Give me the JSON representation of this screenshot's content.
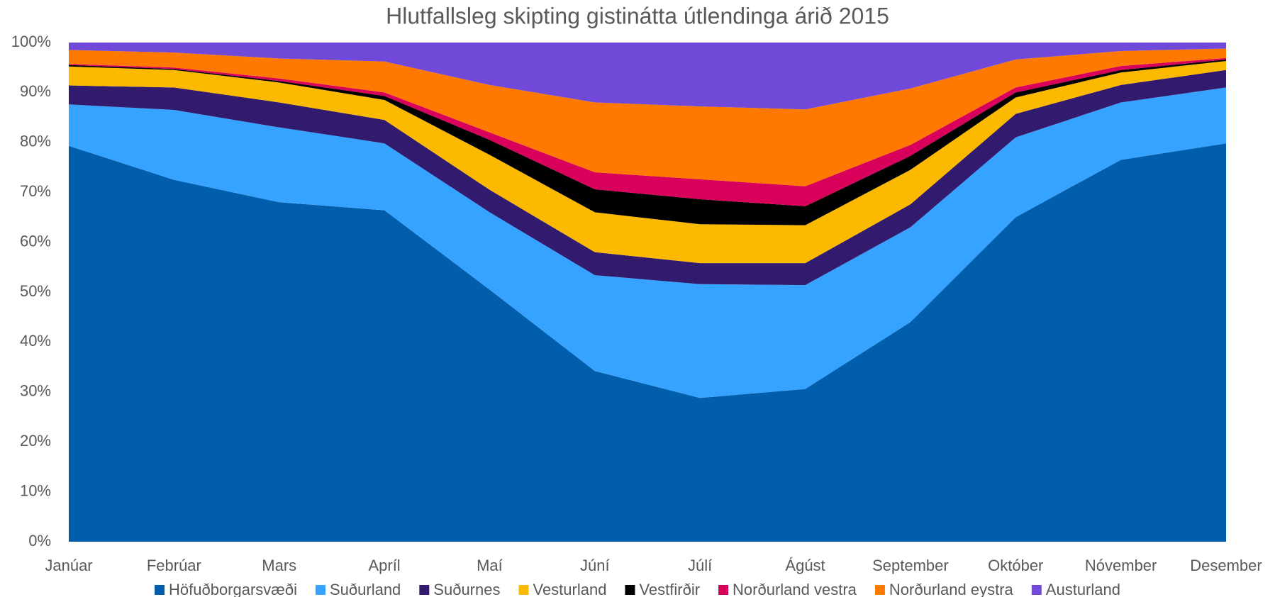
{
  "chart_data": {
    "type": "stacked_area_100",
    "title": "Hlutfallsleg skipting gistinátta útlendinga árið 2015",
    "categories": [
      "Janúar",
      "Febrúar",
      "Mars",
      "Apríl",
      "Maí",
      "Júní",
      "Júlí",
      "Ágúst",
      "September",
      "Október",
      "Nóvember",
      "Desember"
    ],
    "series": [
      {
        "name": "Höfuðborgarsvæði",
        "color": "#005ead",
        "values": [
          79.3,
          72.5,
          68.0,
          66.4,
          50.5,
          34.2,
          28.8,
          30.6,
          44.0,
          65.0,
          76.5,
          79.8
        ]
      },
      {
        "name": "Suðurland",
        "color": "#35a3ff",
        "values": [
          8.3,
          14.0,
          15.0,
          13.4,
          15.5,
          19.2,
          22.8,
          20.8,
          19.0,
          16.0,
          11.5,
          11.2
        ]
      },
      {
        "name": "Suðurnes",
        "color": "#321a6e",
        "values": [
          3.8,
          4.5,
          5.0,
          4.7,
          4.5,
          4.6,
          4.2,
          4.4,
          4.6,
          4.7,
          3.5,
          3.5
        ]
      },
      {
        "name": "Vesturland",
        "color": "#fbb900",
        "values": [
          3.8,
          3.5,
          4.0,
          4.0,
          7.0,
          8.0,
          7.8,
          7.6,
          6.9,
          3.3,
          2.5,
          1.8
        ]
      },
      {
        "name": "Vestfirðir",
        "color": "#000000",
        "values": [
          0.3,
          0.2,
          0.3,
          0.8,
          3.0,
          4.6,
          5.0,
          3.8,
          2.8,
          1.0,
          0.5,
          0.3
        ]
      },
      {
        "name": "Norðurland vestra",
        "color": "#d9005b",
        "values": [
          0.2,
          0.3,
          0.5,
          0.7,
          1.5,
          3.4,
          4.0,
          4.0,
          2.2,
          1.0,
          0.8,
          0.3
        ]
      },
      {
        "name": "Norðurland eystra",
        "color": "#ff7900",
        "values": [
          2.8,
          3.0,
          4.0,
          6.2,
          9.5,
          14.0,
          14.6,
          15.4,
          11.3,
          5.6,
          3.0,
          1.9
        ]
      },
      {
        "name": "Austurland",
        "color": "#7149d9",
        "values": [
          1.5,
          2.0,
          3.2,
          3.8,
          8.5,
          12.0,
          12.8,
          13.4,
          9.2,
          3.4,
          1.7,
          1.2
        ]
      }
    ],
    "ylim": [
      0,
      100
    ],
    "yticks": [
      {
        "value": 0,
        "label": "0%"
      },
      {
        "value": 10,
        "label": "10%"
      },
      {
        "value": 20,
        "label": "20%"
      },
      {
        "value": 30,
        "label": "30%"
      },
      {
        "value": 40,
        "label": "40%"
      },
      {
        "value": 50,
        "label": "50%"
      },
      {
        "value": 60,
        "label": "60%"
      },
      {
        "value": 70,
        "label": "70%"
      },
      {
        "value": 80,
        "label": "80%"
      },
      {
        "value": 90,
        "label": "90%"
      },
      {
        "value": 100,
        "label": "100%"
      }
    ],
    "legend": "bottom"
  }
}
